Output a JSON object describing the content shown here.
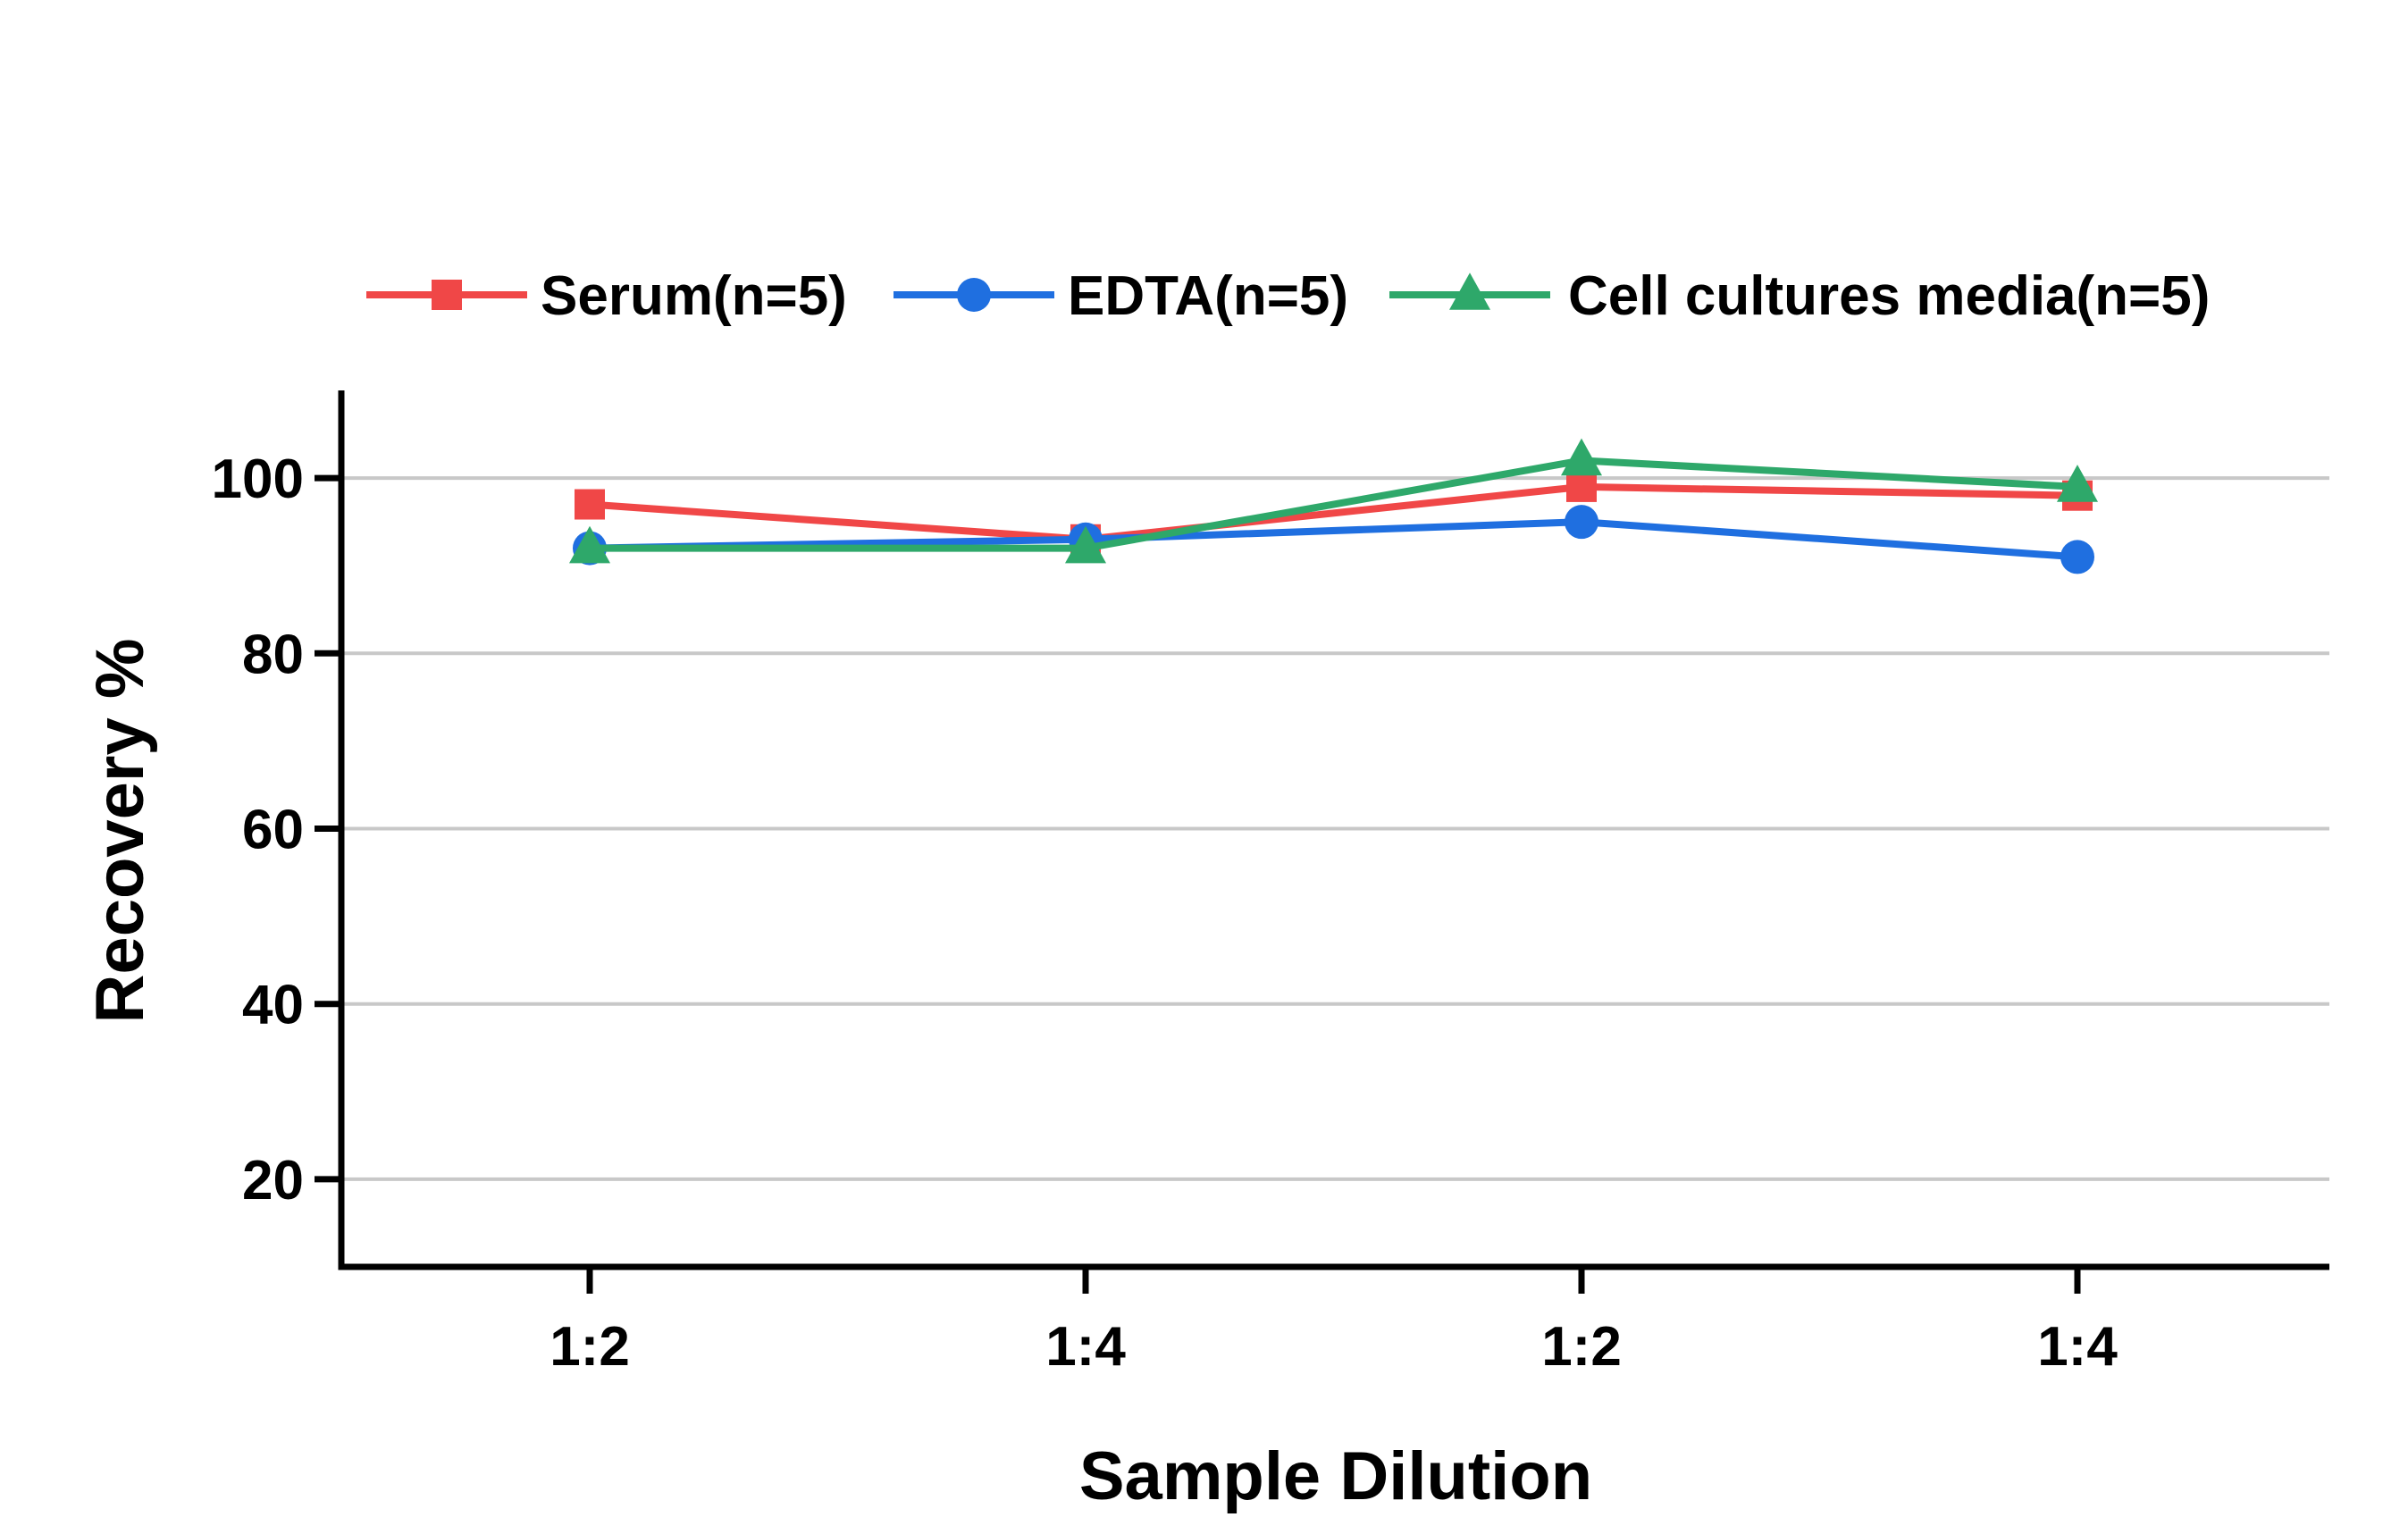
{
  "chart_data": {
    "type": "line",
    "title": "",
    "xlabel": "Sample Dilution",
    "ylabel": "Recovery %",
    "categories": [
      "1:2",
      "1:4",
      "1:2",
      "1:4"
    ],
    "yticks": [
      20,
      40,
      60,
      80,
      100
    ],
    "ylim": [
      10,
      110
    ],
    "grid": "horizontal",
    "legend_position": "top",
    "series": [
      {
        "name": "Serum(n=5)",
        "values": [
          97,
          93,
          99,
          98
        ],
        "color": "#f04747",
        "marker": "square"
      },
      {
        "name": "EDTA(n=5)",
        "values": [
          92,
          93,
          95,
          91
        ],
        "color": "#1f6fe0",
        "marker": "circle"
      },
      {
        "name": "Cell cultures media(n=5)",
        "values": [
          92,
          92,
          102,
          99
        ],
        "color": "#2ea86a",
        "marker": "triangle"
      }
    ]
  }
}
